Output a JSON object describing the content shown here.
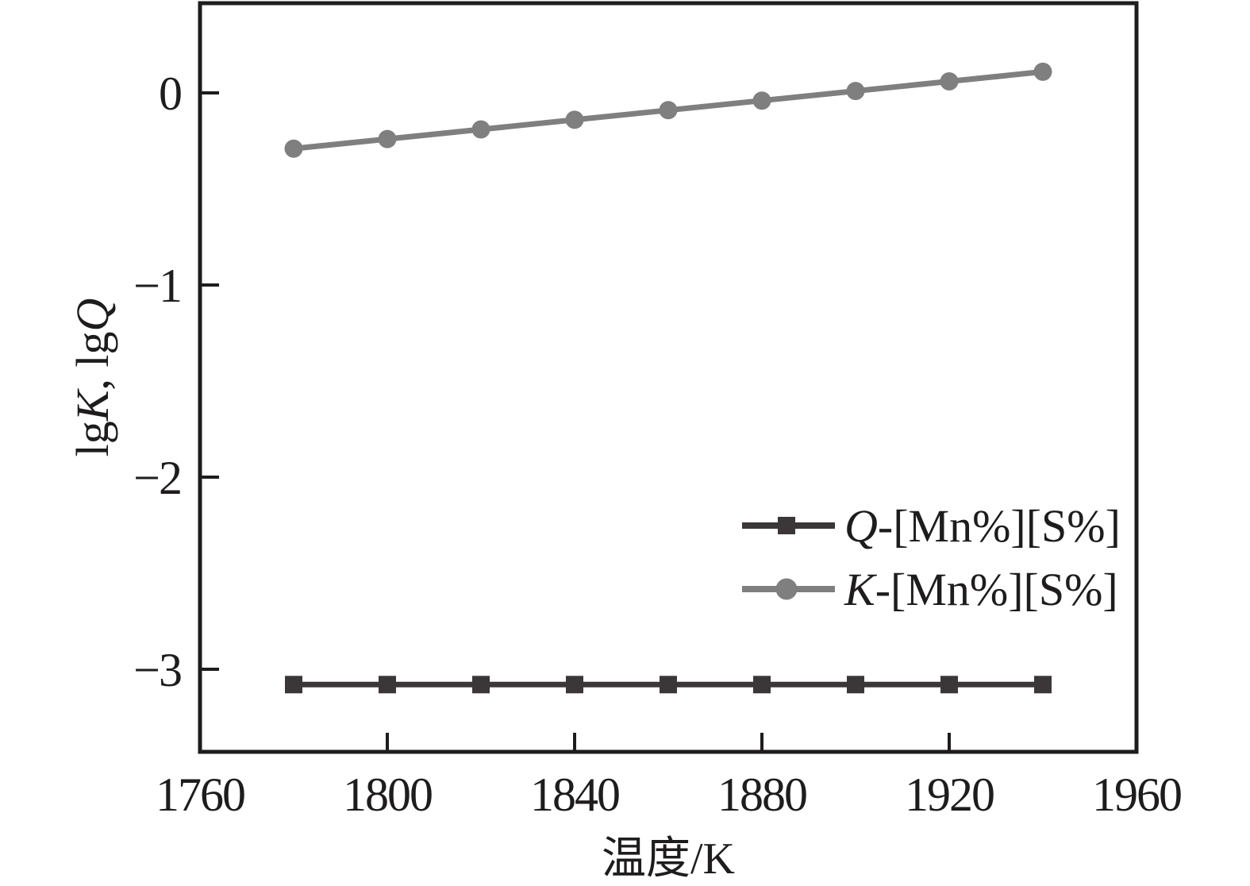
{
  "figure": {
    "background": "#ffffff",
    "axis_color": "#1f1c1d",
    "text_color": "#1f1c1d"
  },
  "chart_data": {
    "type": "line",
    "title": "",
    "xlabel": "温度/K",
    "ylabel": "lgK, lgQ",
    "ylabel_segments": [
      {
        "text": "lg",
        "italic": false
      },
      {
        "text": "K",
        "italic": true
      },
      {
        "text": ", lg",
        "italic": false
      },
      {
        "text": "Q",
        "italic": true
      }
    ],
    "xlim": [
      1760,
      1960
    ],
    "ylim": [
      -3.43,
      0.467
    ],
    "x_ticks": [
      1760,
      1800,
      1840,
      1880,
      1920,
      1960
    ],
    "y_ticks": [
      {
        "value": 0,
        "label": "0"
      },
      {
        "value": -1,
        "label": "−1"
      },
      {
        "value": -2,
        "label": "−2"
      },
      {
        "value": -3,
        "label": "−3"
      }
    ],
    "grid": false,
    "legend_position": "lower-right-inside",
    "x": [
      1780,
      1800,
      1820,
      1840,
      1860,
      1880,
      1900,
      1920,
      1940
    ],
    "series": [
      {
        "id": "Q",
        "name": "Q-[Mn%][S%]",
        "name_segments": [
          {
            "text": "Q",
            "italic": true
          },
          {
            "text": "-[Mn%][S%]",
            "italic": false
          }
        ],
        "marker": "square",
        "color": "#3b3739",
        "values": [
          -3.08,
          -3.08,
          -3.08,
          -3.08,
          -3.08,
          -3.08,
          -3.08,
          -3.08,
          -3.08
        ]
      },
      {
        "id": "K",
        "name": "K-[Mn%][S%]",
        "name_segments": [
          {
            "text": "K",
            "italic": true
          },
          {
            "text": "-[Mn%][S%]",
            "italic": false
          }
        ],
        "marker": "circle",
        "color": "#7f7f7f",
        "values": [
          -0.29,
          -0.24,
          -0.19,
          -0.14,
          -0.09,
          -0.04,
          0.01,
          0.06,
          0.11
        ]
      }
    ]
  }
}
